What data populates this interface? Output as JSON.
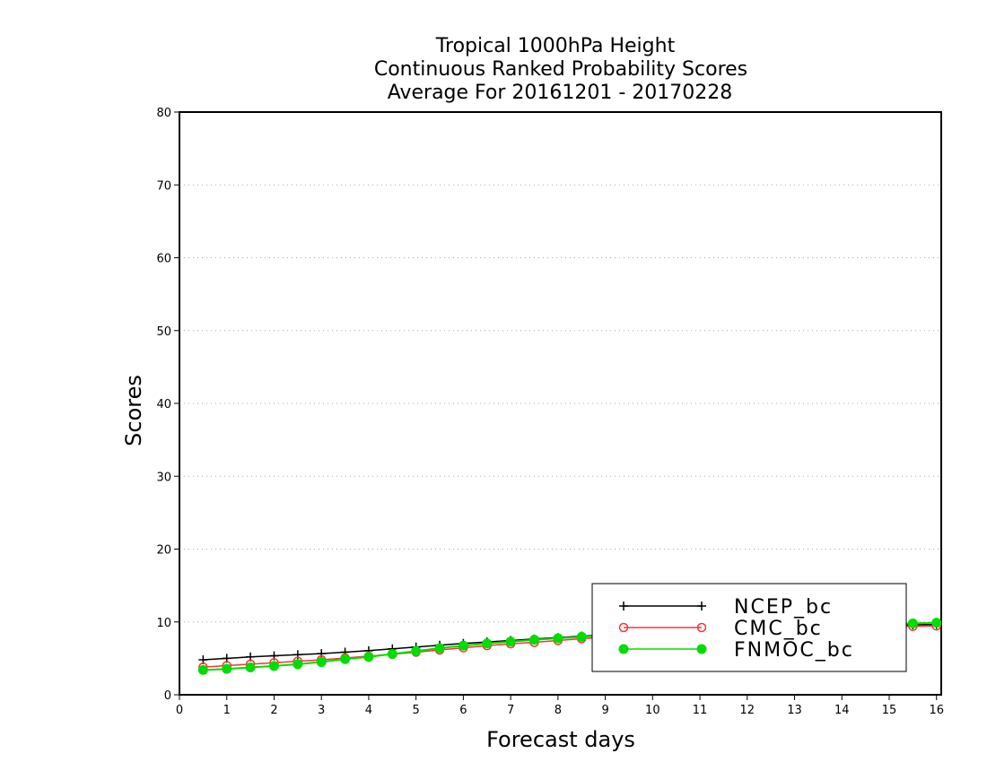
{
  "chart_data": {
    "type": "line",
    "title_lines": [
      "Tropical 1000hPa Height",
      "Continuous Ranked Probability Scores",
      "Average For 20161201 - 20170228"
    ],
    "xlabel": "Forecast days",
    "ylabel": "Scores",
    "xlim": [
      0,
      16.1
    ],
    "ylim": [
      0,
      80
    ],
    "xticks": [
      0,
      1,
      2,
      3,
      4,
      5,
      6,
      7,
      8,
      9,
      10,
      11,
      12,
      13,
      14,
      15,
      16
    ],
    "yticks": [
      0,
      10,
      20,
      30,
      40,
      50,
      60,
      70,
      80
    ],
    "grid": "horizontal dotted",
    "legend_position": "bottom-right",
    "x": [
      0.5,
      1,
      1.5,
      2,
      2.5,
      3,
      3.5,
      4,
      4.5,
      5,
      5.5,
      6,
      6.5,
      7,
      7.5,
      8,
      8.5,
      9,
      9.5,
      10,
      10.5,
      11,
      11.5,
      12,
      12.5,
      13,
      13.5,
      14,
      14.5,
      15,
      15.5,
      16
    ],
    "series": [
      {
        "name": "NCEP_bc",
        "color": "#000000",
        "marker": "plus",
        "values": [
          4.8,
          5.0,
          5.2,
          5.35,
          5.5,
          5.65,
          5.85,
          6.05,
          6.3,
          6.55,
          6.8,
          7.05,
          7.25,
          7.45,
          7.65,
          7.85,
          8.05,
          8.25,
          8.4,
          8.55,
          8.7,
          8.85,
          8.95,
          9.05,
          9.15,
          9.25,
          9.35,
          9.45,
          9.5,
          9.55,
          9.6,
          9.65
        ]
      },
      {
        "name": "CMC_bc",
        "color": "#ff3333",
        "marker": "open-circle",
        "values": [
          3.8,
          4.0,
          4.2,
          4.4,
          4.6,
          4.8,
          5.05,
          5.3,
          5.55,
          5.85,
          6.15,
          6.45,
          6.75,
          7.0,
          7.2,
          7.45,
          7.7,
          7.9,
          8.1,
          8.3,
          8.5,
          8.65,
          8.8,
          8.95,
          9.05,
          9.15,
          9.25,
          9.3,
          9.35,
          9.4,
          9.4,
          9.45
        ]
      },
      {
        "name": "FNMOC_bc",
        "color": "#00dd00",
        "marker": "filled-circle",
        "values": [
          3.4,
          3.55,
          3.75,
          3.95,
          4.2,
          4.5,
          4.9,
          5.2,
          5.6,
          6.0,
          6.4,
          6.75,
          7.05,
          7.3,
          7.55,
          7.75,
          7.95,
          8.15,
          8.35,
          8.5,
          8.65,
          8.8,
          8.95,
          9.1,
          9.2,
          9.3,
          9.4,
          9.5,
          9.6,
          9.7,
          9.8,
          9.9
        ]
      }
    ]
  }
}
